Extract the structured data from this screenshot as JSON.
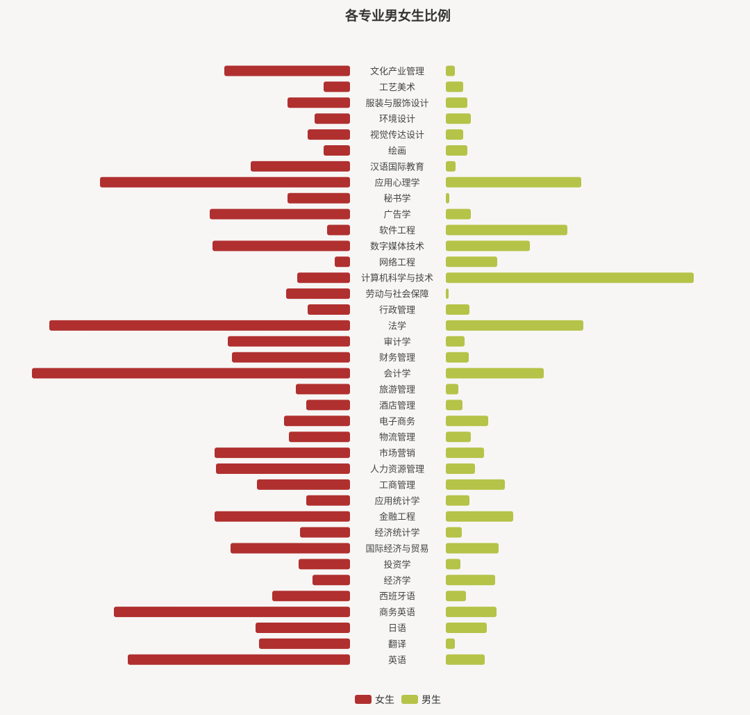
{
  "colors": {
    "female": "#b0302f",
    "male": "#b5c348",
    "background": "#f7f6f5"
  },
  "chart_data": {
    "type": "bar",
    "orientation": "horizontal-butterfly",
    "title": "各专业男女生比例",
    "legend_position": "bottom-center",
    "grid": false,
    "categories": [
      "文化产业管理",
      "工艺美术",
      "服装与服饰设计",
      "环境设计",
      "视觉传达设计",
      "绘画",
      "汉语国际教育",
      "应用心理学",
      "秘书学",
      "广告学",
      "软件工程",
      "数字媒体技术",
      "网络工程",
      "计算机科学与技术",
      "劳动与社会保障",
      "行政管理",
      "法学",
      "审计学",
      "财务管理",
      "会计学",
      "旅游管理",
      "酒店管理",
      "电子商务",
      "物流管理",
      "市场营销",
      "人力资源管理",
      "工商管理",
      "应用统计学",
      "金融工程",
      "经济统计学",
      "国际经济与贸易",
      "投资学",
      "经济学",
      "西班牙语",
      "商务英语",
      "日语",
      "翻译",
      "英语"
    ],
    "series": [
      {
        "name": "女生",
        "values": [
          181,
          38,
          90,
          51,
          61,
          38,
          143,
          360,
          90,
          202,
          33,
          198,
          22,
          76,
          92,
          61,
          433,
          176,
          170,
          458,
          78,
          63,
          95,
          88,
          195,
          193,
          134,
          63,
          195,
          72,
          172,
          74,
          54,
          112,
          340,
          136,
          131,
          320
        ]
      },
      {
        "name": "男生",
        "values": [
          13,
          25,
          31,
          36,
          25,
          31,
          14,
          195,
          5,
          36,
          175,
          121,
          74,
          357,
          4,
          34,
          198,
          27,
          33,
          141,
          18,
          24,
          61,
          36,
          55,
          42,
          85,
          34,
          97,
          23,
          76,
          21,
          71,
          29,
          73,
          59,
          13,
          56
        ]
      }
    ]
  }
}
